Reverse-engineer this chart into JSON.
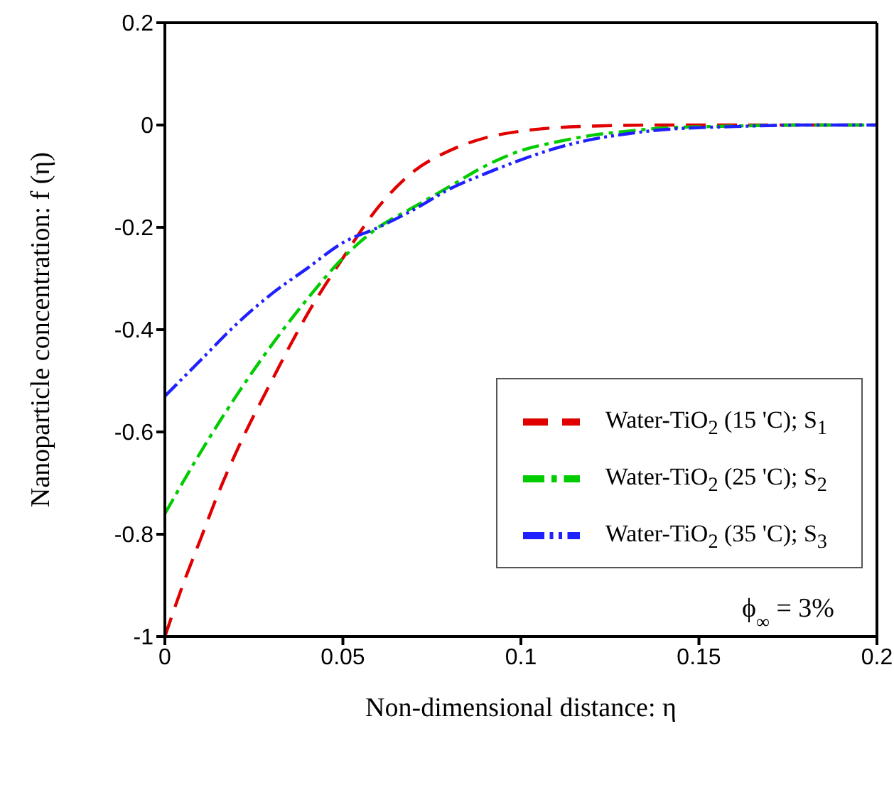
{
  "chart_data": {
    "type": "line",
    "xlabel": "Non-dimensional distance: η",
    "ylabel": "Nanoparticle concentration: f (η)",
    "annotations": [
      "ϕ$_{∞}$ = 3%"
    ],
    "xlim": [
      0,
      0.2
    ],
    "xticks": [
      0,
      0.05,
      0.1,
      0.15,
      0.2
    ],
    "ylim": [
      -1,
      0.2
    ],
    "yticks": [
      -1,
      -0.8,
      -0.6,
      -0.4,
      -0.2,
      0,
      0.2
    ],
    "legend": "right",
    "marker": "none",
    "series": [
      {
        "name": "Water-TiO$_{2}$ (15 'C); S$_{1}$",
        "color": "#e00000",
        "line_style": "dashed",
        "x": [
          0,
          0.005,
          0.01,
          0.015,
          0.02,
          0.03,
          0.04,
          0.05,
          0.06,
          0.07,
          0.08,
          0.09,
          0.1,
          0.11,
          0.12,
          0.14,
          0.16,
          0.2
        ],
        "values": [
          -1,
          -0.9,
          -0.81,
          -0.72,
          -0.64,
          -0.5,
          -0.37,
          -0.26,
          -0.16,
          -0.09,
          -0.05,
          -0.025,
          -0.012,
          -0.005,
          -0.002,
          0,
          0,
          0
        ]
      },
      {
        "name": "Water-TiO$_{2}$ (25 'C); S$_{2}$",
        "color": "#00cc00",
        "line_style": "dashed",
        "x": [
          0,
          0.01,
          0.02,
          0.03,
          0.04,
          0.05,
          0.06,
          0.07,
          0.08,
          0.09,
          0.1,
          0.11,
          0.12,
          0.13,
          0.14,
          0.16,
          0.18,
          0.2
        ],
        "values": [
          -0.76,
          -0.64,
          -0.53,
          -0.43,
          -0.34,
          -0.26,
          -0.2,
          -0.16,
          -0.12,
          -0.08,
          -0.05,
          -0.033,
          -0.02,
          -0.012,
          -0.006,
          -0.002,
          0,
          0
        ]
      },
      {
        "name": "Water-TiO$_{2}$ (35 'C); S$_{3}$",
        "color": "#2020ff",
        "line_style": "dashed",
        "x": [
          0,
          0.01,
          0.02,
          0.03,
          0.04,
          0.05,
          0.06,
          0.07,
          0.08,
          0.09,
          0.1,
          0.11,
          0.12,
          0.13,
          0.14,
          0.16,
          0.18,
          0.2
        ],
        "values": [
          -0.53,
          -0.46,
          -0.39,
          -0.33,
          -0.28,
          -0.23,
          -0.2,
          -0.165,
          -0.125,
          -0.095,
          -0.068,
          -0.045,
          -0.028,
          -0.017,
          -0.009,
          -0.003,
          0,
          0
        ]
      }
    ]
  }
}
